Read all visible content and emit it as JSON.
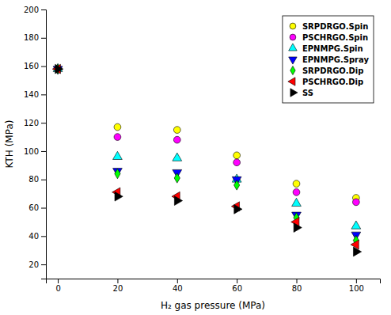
{
  "chart_data": {
    "type": "scatter",
    "x_label": "H₂ gas pressure (MPa)",
    "y_label": "KTH (MPa)",
    "x": [
      0,
      20,
      40,
      60,
      80,
      100
    ],
    "series": [
      {
        "name": "SRPDRGO.Spin",
        "color": "yellow",
        "marker": "circle",
        "values": [
          158,
          117,
          115,
          97,
          77,
          67
        ]
      },
      {
        "name": "PSCHRGO.Spin",
        "color": "magenta",
        "marker": "circle",
        "values": [
          158,
          110,
          108,
          92,
          71,
          64
        ]
      },
      {
        "name": "EPNMPG.Spin",
        "color": "cyan",
        "marker": "triangle-up",
        "values": [
          158,
          96,
          95,
          80,
          63,
          47
        ]
      },
      {
        "name": "EPNMPG.Spray",
        "color": "blue",
        "marker": "triangle-down",
        "values": [
          158,
          86,
          85,
          80,
          55,
          41
        ]
      },
      {
        "name": "SRPDRGO.Dip",
        "color": "lime",
        "marker": "diamond",
        "values": [
          158,
          84,
          81,
          76,
          53,
          37
        ]
      },
      {
        "name": "PSCHRGO.Dip",
        "color": "red",
        "marker": "triangle-left",
        "values": [
          158,
          71,
          68,
          61,
          50,
          34
        ]
      },
      {
        "name": "SS",
        "color": "black",
        "marker": "triangle-right",
        "values": [
          158,
          68,
          65,
          59,
          46,
          29
        ]
      }
    ],
    "xlim": [
      -4,
      108
    ],
    "ylim": [
      10,
      200
    ],
    "xticks": [
      0,
      20,
      40,
      60,
      80,
      100
    ],
    "yticks": [
      20,
      40,
      60,
      80,
      100,
      120,
      140,
      160,
      180,
      200
    ],
    "legend": "upper-right"
  }
}
